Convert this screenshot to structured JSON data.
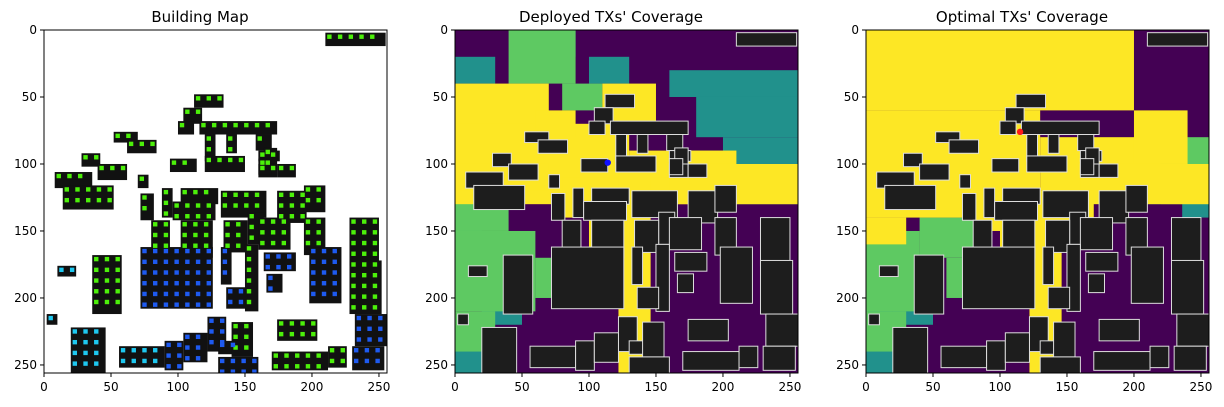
{
  "colors": {
    "building": "#111111",
    "building_heatmap": "#1d1d1d",
    "building_edge": "#dddddd",
    "viridis_low": "#440154",
    "viridis_midlow": "#21918c",
    "viridis_mid": "#5ec962",
    "viridis_high": "#fde725",
    "green_dot": "#4cf00a",
    "cyan_dot": "#1ec8f0",
    "blue_dot": "#1e5af0",
    "deployed_tx": "#1010ff",
    "optimal_tx": "#ff1a1a"
  },
  "chart_data": [
    {
      "type": "heatmap",
      "title": "Building Map",
      "xlim": [
        0,
        256
      ],
      "ylim": [
        256,
        0
      ],
      "xticks": [
        0,
        50,
        100,
        150,
        200,
        250
      ],
      "yticks": [
        0,
        50,
        100,
        150,
        200,
        250
      ],
      "grid": false
    },
    {
      "type": "heatmap",
      "title": "Deployed TXs' Coverage",
      "xlim": [
        0,
        256
      ],
      "ylim": [
        256,
        0
      ],
      "xticks": [
        0,
        50,
        100,
        150,
        200,
        250
      ],
      "yticks": [
        0,
        50,
        100,
        150,
        200,
        250
      ],
      "grid": false,
      "tx": [
        {
          "x": 114,
          "y": 99
        }
      ]
    },
    {
      "type": "heatmap",
      "title": "Optimal TXs' Coverage",
      "xlim": [
        0,
        256
      ],
      "ylim": [
        256,
        0
      ],
      "xticks": [
        0,
        50,
        100,
        150,
        200,
        250
      ],
      "yticks": [
        0,
        50,
        100,
        150,
        200,
        250
      ],
      "grid": false,
      "tx": [
        {
          "x": 115,
          "y": 76
        }
      ]
    }
  ]
}
